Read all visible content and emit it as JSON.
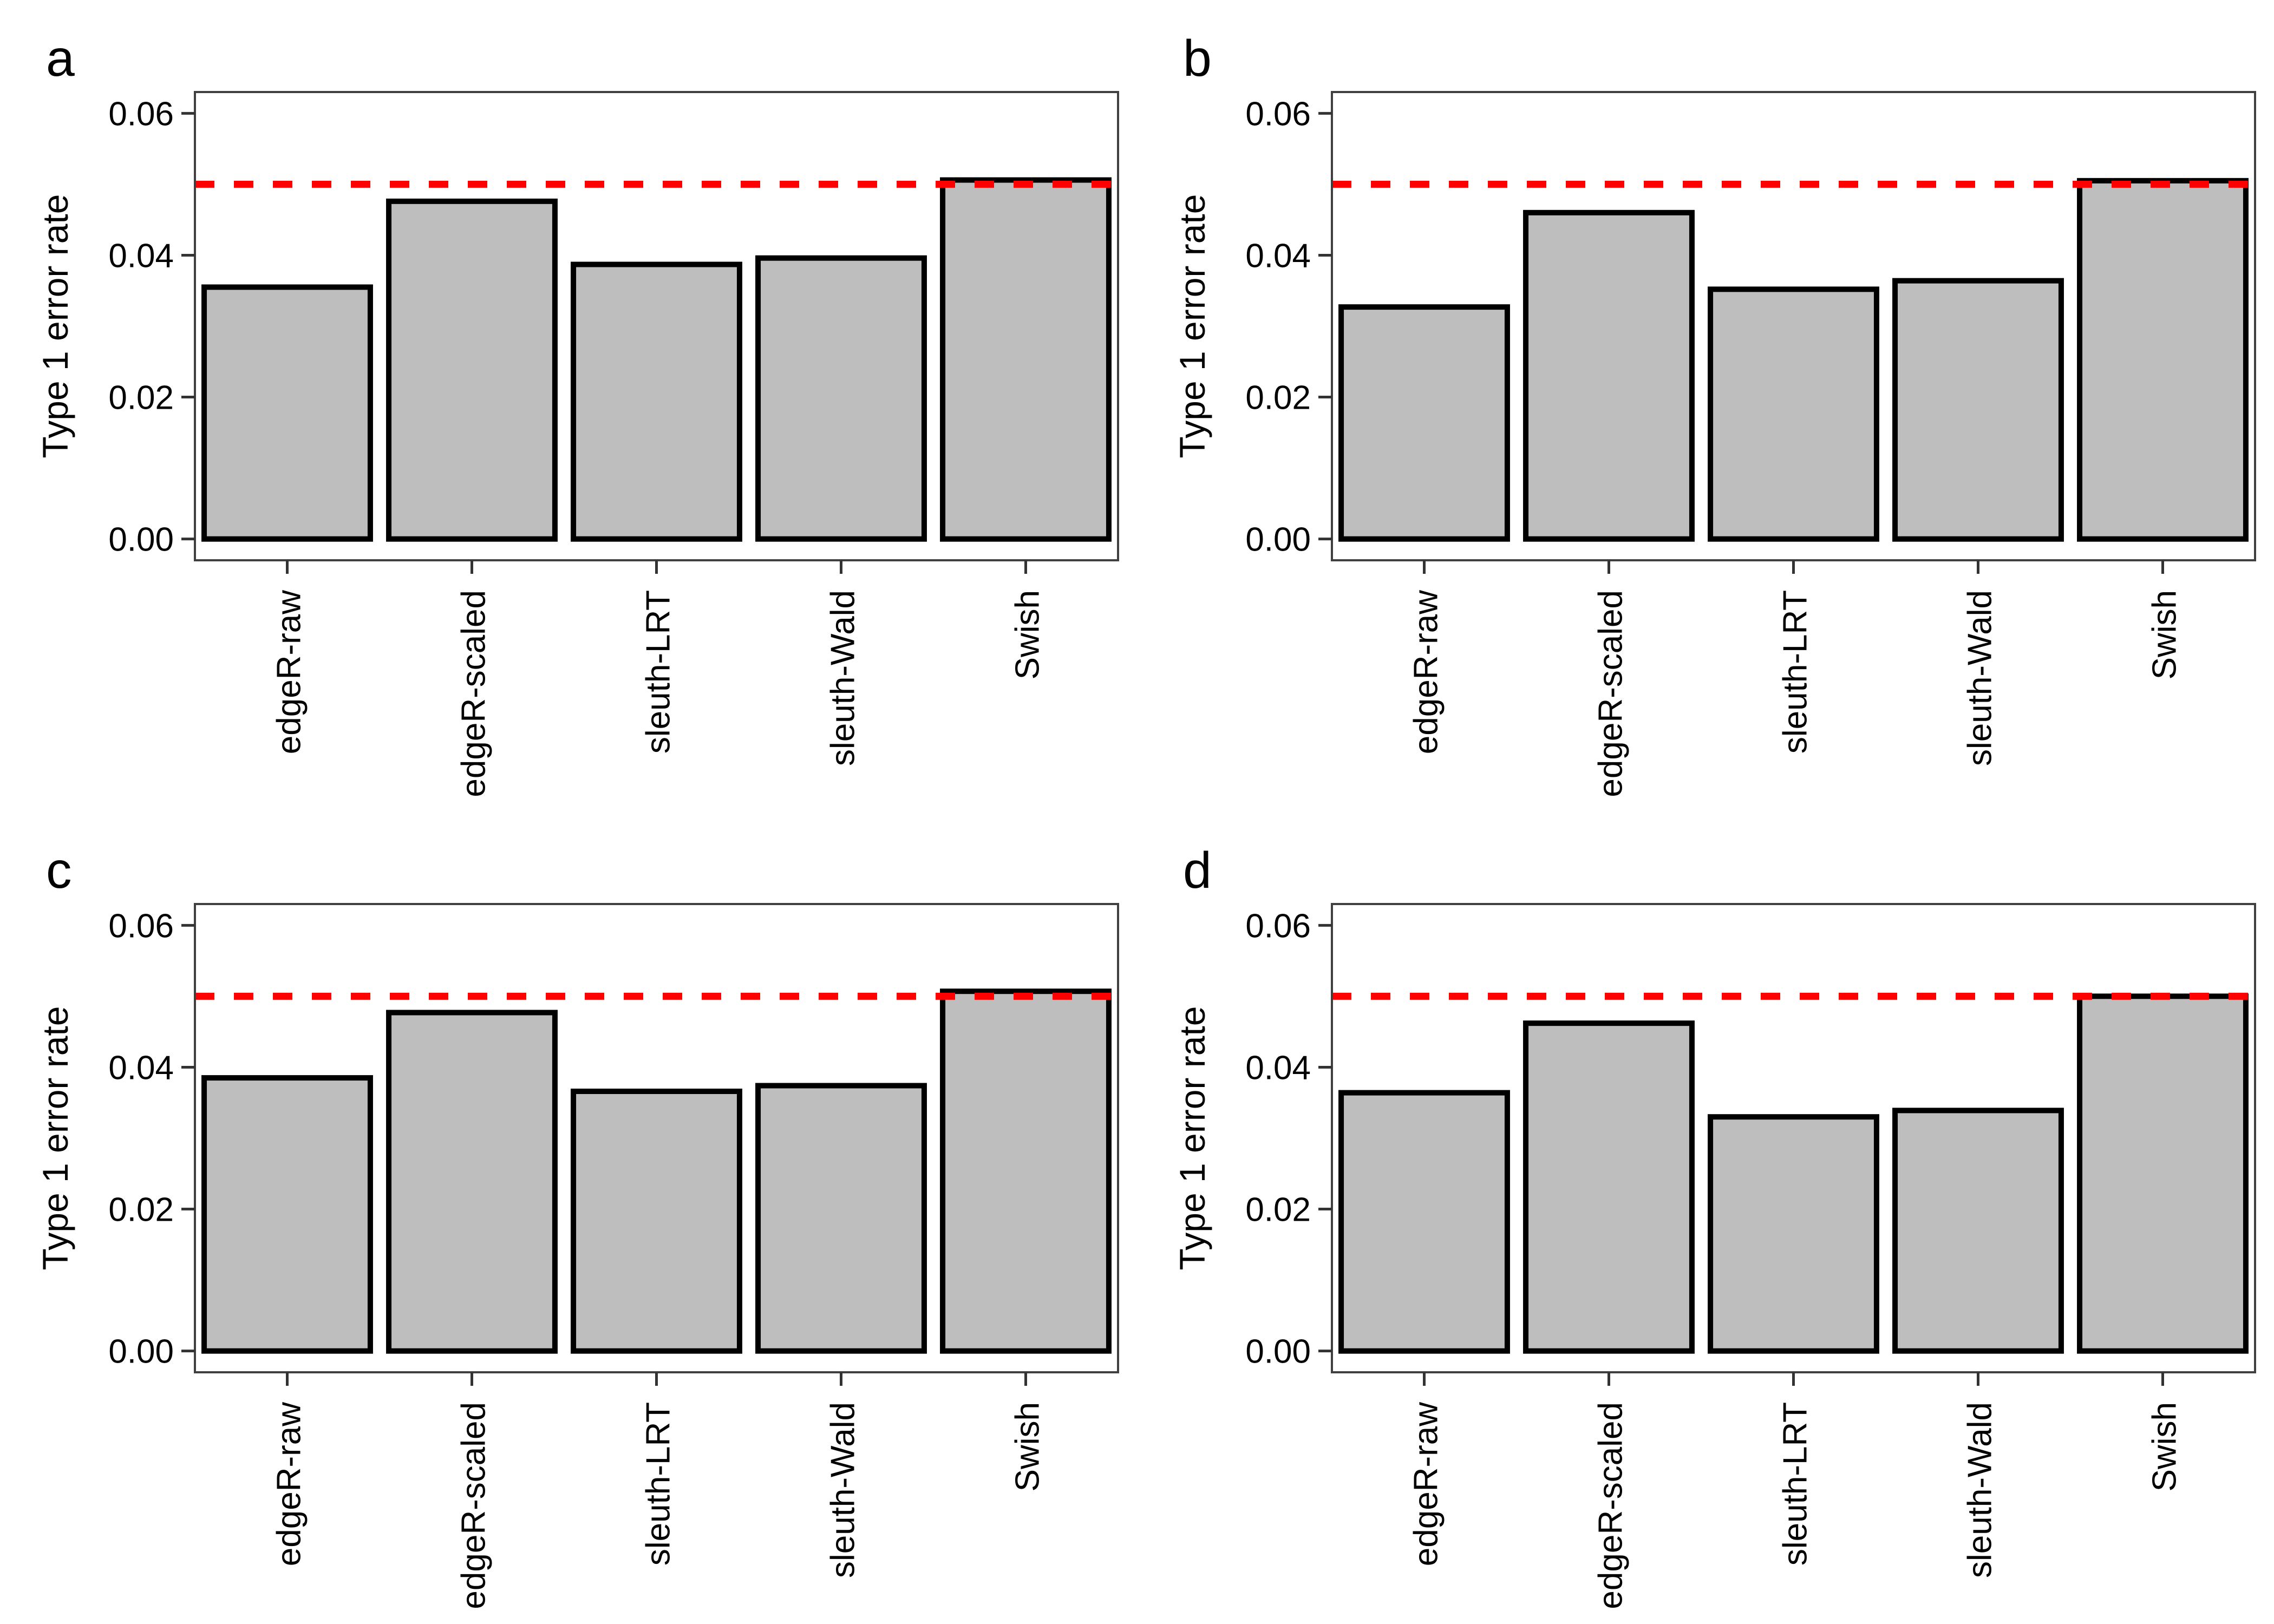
{
  "figure": {
    "ylabel": "Type 1 error rate",
    "categories": [
      "edgeR-raw",
      "edgeR-scaled",
      "sleuth-LRT",
      "sleuth-Wald",
      "Swish"
    ],
    "y_tick_labels": [
      "0.00",
      "0.02",
      "0.04",
      "0.06"
    ],
    "y_tick_values": [
      0,
      0.02,
      0.04,
      0.06
    ],
    "panel_labels": [
      "a",
      "b",
      "c",
      "d"
    ],
    "reference_line_value": 0.05,
    "colors": {
      "bar_fill": "#BEBEBE",
      "bar_stroke": "#000000",
      "reference_line": "#FF0000",
      "panel_border": "#404040",
      "tick": "#333333",
      "text": "#000000",
      "background": "#FFFFFF"
    }
  },
  "chart_data": [
    {
      "type": "bar",
      "panel": "a",
      "title": "",
      "xlabel": "",
      "ylabel": "Type 1 error rate",
      "categories": [
        "edgeR-raw",
        "edgeR-scaled",
        "sleuth-LRT",
        "sleuth-Wald",
        "Swish"
      ],
      "values": [
        0.0355,
        0.0476,
        0.0387,
        0.0396,
        0.0506
      ],
      "ref_line": 0.05,
      "ref_line_style": "dashed",
      "ref_line_color": "#FF0000",
      "ylim": [
        0,
        0.06
      ],
      "y_ticks": [
        0,
        0.02,
        0.04,
        0.06
      ],
      "grid": "off",
      "legend": "none"
    },
    {
      "type": "bar",
      "panel": "b",
      "title": "",
      "xlabel": "",
      "ylabel": "Type 1 error rate",
      "categories": [
        "edgeR-raw",
        "edgeR-scaled",
        "sleuth-LRT",
        "sleuth-Wald",
        "Swish"
      ],
      "values": [
        0.0327,
        0.046,
        0.0352,
        0.0364,
        0.0505
      ],
      "ref_line": 0.05,
      "ref_line_style": "dashed",
      "ref_line_color": "#FF0000",
      "ylim": [
        0,
        0.06
      ],
      "y_ticks": [
        0,
        0.02,
        0.04,
        0.06
      ],
      "grid": "off",
      "legend": "none"
    },
    {
      "type": "bar",
      "panel": "c",
      "title": "",
      "xlabel": "",
      "ylabel": "Type 1 error rate",
      "categories": [
        "edgeR-raw",
        "edgeR-scaled",
        "sleuth-LRT",
        "sleuth-Wald",
        "Swish"
      ],
      "values": [
        0.0385,
        0.0477,
        0.0366,
        0.0374,
        0.0507
      ],
      "ref_line": 0.05,
      "ref_line_style": "dashed",
      "ref_line_color": "#FF0000",
      "ylim": [
        0,
        0.06
      ],
      "y_ticks": [
        0,
        0.02,
        0.04,
        0.06
      ],
      "grid": "off",
      "legend": "none"
    },
    {
      "type": "bar",
      "panel": "d",
      "title": "",
      "xlabel": "",
      "ylabel": "Type 1 error rate",
      "categories": [
        "edgeR-raw",
        "edgeR-scaled",
        "sleuth-LRT",
        "sleuth-Wald",
        "Swish"
      ],
      "values": [
        0.0364,
        0.0462,
        0.033,
        0.0339,
        0.05
      ],
      "ref_line": 0.05,
      "ref_line_style": "dashed",
      "ref_line_color": "#FF0000",
      "ylim": [
        0,
        0.06
      ],
      "y_ticks": [
        0,
        0.02,
        0.04,
        0.06
      ],
      "grid": "off",
      "legend": "none"
    }
  ]
}
